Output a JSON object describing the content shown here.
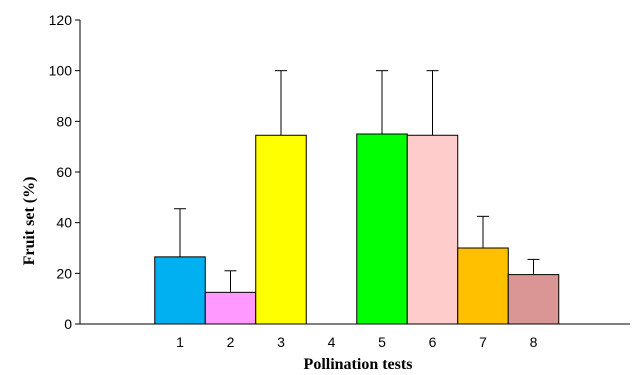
{
  "chart_data": {
    "type": "bar",
    "title": "",
    "xlabel": "Pollination tests",
    "ylabel": "Fruit set (%)",
    "ylim": [
      0,
      120
    ],
    "yticks": [
      0,
      20,
      40,
      60,
      80,
      100,
      120
    ],
    "grid": false,
    "legend": "none",
    "error_bars": "upper",
    "categories": [
      "1",
      "2",
      "3",
      "4",
      "5",
      "6",
      "7",
      "8"
    ],
    "values": [
      26.5,
      12.5,
      74.5,
      0,
      75,
      74.5,
      30,
      19.5
    ],
    "errors": [
      19,
      8.5,
      25.5,
      0,
      25,
      25.5,
      12.5,
      6
    ],
    "colors": [
      "#00B0F0",
      "#FF99FF",
      "#FFFF00",
      "#FFFFFF",
      "#00FF00",
      "#FFCCCC",
      "#FFC000",
      "#D99694"
    ]
  }
}
